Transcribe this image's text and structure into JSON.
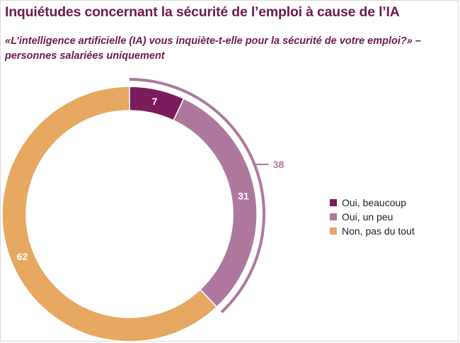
{
  "chart_data": {
    "type": "pie",
    "title": "Inquiétudes concernant la sécurité de l’emploi à cause de l’IA",
    "subtitle": "«L’intelligence artificielle (IA) vous inquiète-t-elle pour la sécurité de votre emploi?» – personnes salariées uniquement",
    "slices": [
      {
        "label": "Oui, beaucoup",
        "value": 7,
        "display": "7",
        "color": "#7b1c5c"
      },
      {
        "label": "Oui, un peu",
        "value": 31,
        "display": "31",
        "color": "#ae789e"
      },
      {
        "label": "Non, pas du tout",
        "value": 62,
        "display": "62",
        "color": "#e7a862"
      }
    ],
    "bracket": {
      "value": 38,
      "display": "38",
      "color": "#ae789e",
      "covers": [
        "Oui, beaucoup",
        "Oui, un peu"
      ]
    },
    "legend_position": "right",
    "style": "donut"
  }
}
